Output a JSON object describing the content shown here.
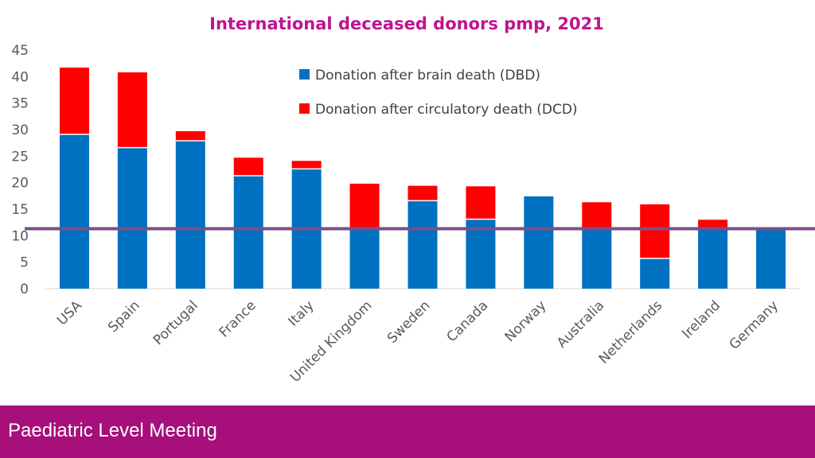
{
  "footer": {
    "text": "Paediatric Level Meeting"
  },
  "chart_data": {
    "type": "bar",
    "stacked": true,
    "title": "International deceased donors pmp, 2021",
    "title_color": "#c0138f",
    "categories": [
      "USA",
      "Spain",
      "Portugal",
      "France",
      "Italy",
      "United Kingdom",
      "Sweden",
      "Canada",
      "Norway",
      "Australia",
      "Netherlands",
      "Ireland",
      "Germany"
    ],
    "series": [
      {
        "name": "Donation after brain death (DBD)",
        "color": "#0070c0",
        "values": [
          29.1,
          26.6,
          27.9,
          21.3,
          22.6,
          11.4,
          16.6,
          13.1,
          17.4,
          11.4,
          5.7,
          11.4,
          11.2
        ]
      },
      {
        "name": "Donation after circulatory death (DCD)",
        "color": "#ff0000",
        "values": [
          12.6,
          14.2,
          1.8,
          3.4,
          1.5,
          8.4,
          2.8,
          6.2,
          0,
          4.9,
          10.2,
          1.6,
          0
        ]
      }
    ],
    "reference_line": {
      "value": 11.3,
      "color": "#7a4f86"
    },
    "yticks": [
      0,
      5,
      10,
      15,
      20,
      25,
      30,
      35,
      40,
      45
    ],
    "ylim": [
      0,
      45
    ],
    "legend_position": "top-center",
    "grid": false
  }
}
